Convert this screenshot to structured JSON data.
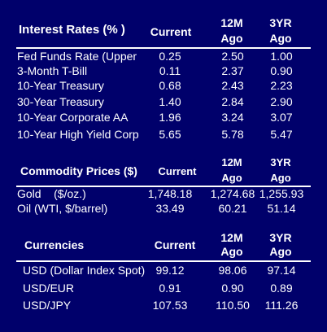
{
  "interest_rates": {
    "title": "Interest Rates (% )",
    "col_current": "Current",
    "col_12m_a": "12M",
    "col_12m_b": "Ago",
    "col_3yr_a": "3YR",
    "col_3yr_b": "Ago",
    "rows": [
      {
        "label": "Fed Funds Rate (Upper",
        "current": "0.25",
        "m12": "2.50",
        "yr3": "1.00"
      },
      {
        "label": "3-Month T-Bill",
        "current": "0.11",
        "m12": "2.37",
        "yr3": "0.90"
      },
      {
        "label": "10-Year Treasury",
        "current": "0.68",
        "m12": "2.43",
        "yr3": "2.23"
      },
      {
        "label": "30-Year Treasury",
        "current": "1.40",
        "m12": "2.84",
        "yr3": "2.90"
      },
      {
        "label": "10-Year Corporate AA",
        "current": "1.96",
        "m12": "3.24",
        "yr3": "3.07"
      },
      {
        "label": "10-Year High Yield Corp",
        "current": "5.65",
        "m12": "5.78",
        "yr3": "5.47"
      }
    ]
  },
  "commodity_prices": {
    "title": "Commodity Prices ($)",
    "col_current": "Current",
    "col_12m_a": "12M",
    "col_12m_b": "Ago",
    "col_3yr_a": "3YR",
    "col_3yr_b": "Ago",
    "rows": [
      {
        "label": "Gold    ($/oz.)",
        "current": "1,748.18",
        "m12": "1,274.68",
        "yr3": "1,255.93"
      },
      {
        "label": "Oil (WTI, $/barrel)",
        "current": "33.49",
        "m12": "60.21",
        "yr3": "51.14"
      }
    ]
  },
  "currencies": {
    "title": "Currencies",
    "col_current": "Current",
    "col_12m_a": "12M",
    "col_12m_b": "Ago",
    "col_3yr_a": "3YR",
    "col_3yr_b": "Ago",
    "rows": [
      {
        "label": "USD (Dollar Index Spot)",
        "current": "99.12",
        "m12": "98.06",
        "yr3": "97.14"
      },
      {
        "label": "USD/EUR",
        "current": "0.91",
        "m12": "0.90",
        "yr3": "0.89"
      },
      {
        "label": "USD/JPY",
        "current": "107.53",
        "m12": "110.50",
        "yr3": "111.26"
      }
    ]
  }
}
